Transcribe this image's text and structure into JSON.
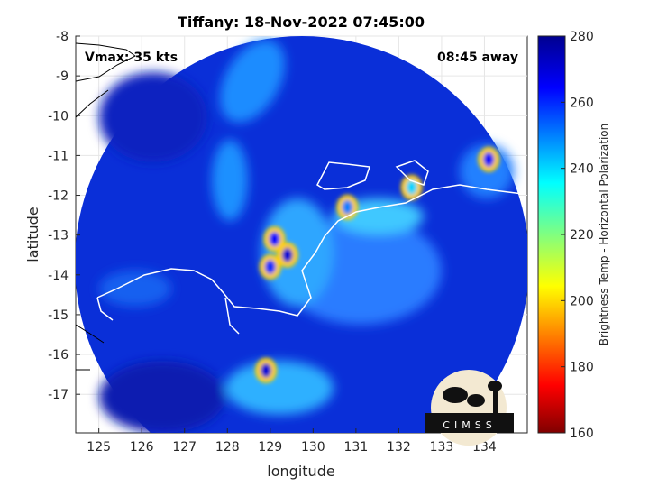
{
  "chart_data": {
    "type": "heatmap",
    "title": "Tiffany: 18-Nov-2022 07:45:00",
    "xlabel": "longitude",
    "ylabel": "latitude",
    "xlim": [
      124.46,
      135.0
    ],
    "ylim": [
      -17.97,
      -8
    ],
    "xticks": [
      125,
      126,
      127,
      128,
      129,
      130,
      131,
      132,
      133,
      134
    ],
    "yticks": [
      -8,
      -9,
      -10,
      -11,
      -12,
      -13,
      -14,
      -15,
      -16,
      -17
    ],
    "grid": true,
    "annotations": {
      "vmax": "Vmax: 35 kts",
      "time_away": "08:45 away"
    },
    "colorbar": {
      "label": "Brightness Temp - Horizontal Polarization",
      "range": [
        160,
        280
      ],
      "ticks": [
        160,
        180,
        200,
        220,
        240,
        260,
        280
      ],
      "colormap": "jet"
    },
    "features": [
      {
        "name": "cold-core",
        "lon": 129.1,
        "lat": -13.1,
        "value": 175
      },
      {
        "name": "cold-core",
        "lon": 129.4,
        "lat": -13.5,
        "value": 170
      },
      {
        "name": "cold-core",
        "lon": 129.0,
        "lat": -13.8,
        "value": 180
      },
      {
        "name": "cold-core",
        "lon": 128.9,
        "lat": -16.4,
        "value": 170
      },
      {
        "name": "cold-core",
        "lon": 130.8,
        "lat": -12.3,
        "value": 190
      },
      {
        "name": "cold-core",
        "lon": 134.1,
        "lat": -11.1,
        "value": 175
      },
      {
        "name": "cold-core",
        "lon": 132.3,
        "lat": -11.8,
        "value": 200
      }
    ],
    "background_value": 270,
    "logo": "CIMSS"
  }
}
